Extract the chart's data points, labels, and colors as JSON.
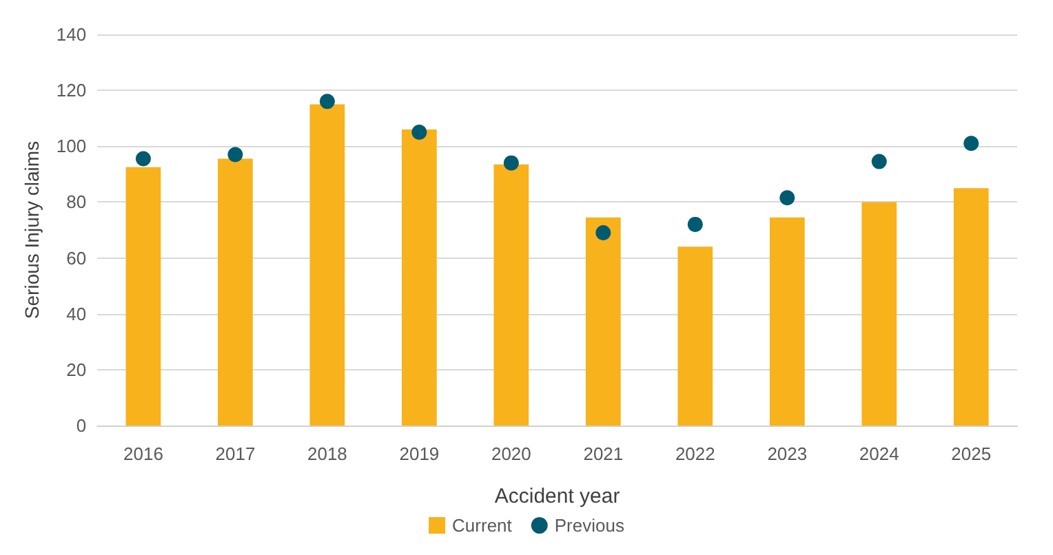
{
  "chart_data": {
    "type": "bar",
    "xlabel": "Accident year",
    "ylabel": "Serious Injury claims",
    "categories": [
      "2016",
      "2017",
      "2018",
      "2019",
      "2020",
      "2021",
      "2022",
      "2023",
      "2024",
      "2025"
    ],
    "series": [
      {
        "name": "Current",
        "color": "#f8b21b",
        "values": [
          92.5,
          95.5,
          115,
          106,
          93.5,
          74.5,
          64,
          74.5,
          80,
          85
        ]
      },
      {
        "name": "Previous",
        "type": "scatter",
        "color": "#005a70",
        "marker": "circle",
        "values": [
          95.5,
          97,
          116,
          105,
          94,
          69,
          72,
          81.5,
          94.5,
          101
        ]
      }
    ],
    "ylim": [
      0,
      140
    ],
    "yticks": [
      0,
      20,
      40,
      60,
      80,
      100,
      120,
      140
    ],
    "grid": "y",
    "legend": "bottom"
  }
}
